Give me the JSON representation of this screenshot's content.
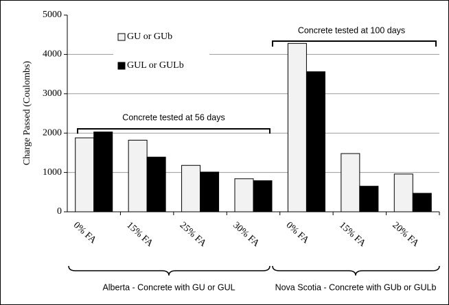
{
  "chart_data": {
    "type": "bar",
    "y_label": "Charge Passed (Coulombs)",
    "categories": [
      "0% FA",
      "15% FA",
      "25% FA",
      "30% FA",
      "0% FA",
      "15% FA",
      "20% FA"
    ],
    "series": [
      {
        "name": "GU or GUb",
        "color": "#f2f2f2",
        "values": [
          1880,
          1820,
          1180,
          840,
          4280,
          1480,
          960
        ]
      },
      {
        "name": "GUL or GULb",
        "color": "#000000",
        "values": [
          2030,
          1390,
          1010,
          790,
          3560,
          650,
          470
        ]
      }
    ],
    "ylim": [
      0,
      5000
    ],
    "yticks": [
      0,
      1000,
      2000,
      3000,
      4000,
      5000
    ],
    "grid": true,
    "annotations": [
      "Concrete tested at 56 days",
      "Concrete tested at 100 days"
    ],
    "group_labels": [
      "Alberta - Concrete with GU or GUL",
      "Nova Scotia - Concrete with GUb or GULb"
    ]
  }
}
